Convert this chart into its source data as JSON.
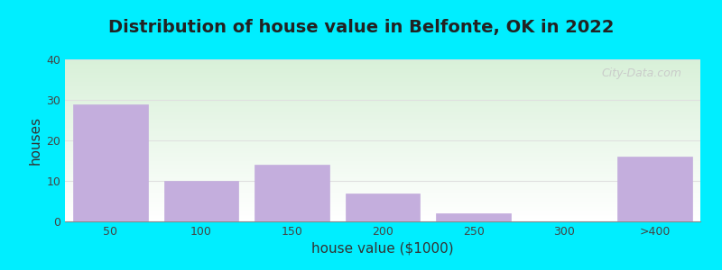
{
  "title": "Distribution of house value in Belfonte, OK in 2022",
  "xlabel": "house value ($1000)",
  "ylabel": "houses",
  "categories": [
    "50",
    "100",
    "150",
    "200",
    "250",
    "300",
    ">400"
  ],
  "values": [
    29,
    10,
    14,
    7,
    2,
    0,
    16
  ],
  "bar_color": "#c4aedd",
  "bar_edgecolor": "#c4aedd",
  "ylim": [
    0,
    40
  ],
  "yticks": [
    0,
    10,
    20,
    30,
    40
  ],
  "background_outer": "#00eeff",
  "bg_top_left": "#d8f0d8",
  "bg_top_right": "#f0f0ff",
  "bg_bottom": "#ffffff",
  "title_fontsize": 14,
  "axis_label_fontsize": 11,
  "tick_fontsize": 9,
  "watermark_text": "City-Data.com",
  "watermark_color": "#c8c8c8",
  "grid_color": "#e0e0e0"
}
